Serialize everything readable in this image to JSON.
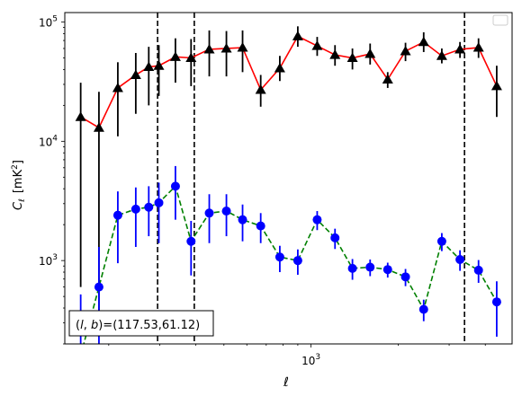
{
  "chart_data": {
    "type": "scatter",
    "xlabel": "ℓ",
    "ylabel_main": "C",
    "ylabel_sub": "ℓ",
    "ylabel_units": "[mK",
    "ylabel_units_sup": "2",
    "ylabel_units_close": "]",
    "xscale": "log",
    "yscale": "log",
    "xlim": [
      141,
      4950
    ],
    "ylim": [
      200,
      120000
    ],
    "x_tick_label": {
      "base": "10",
      "exp": "3",
      "value": 1000
    },
    "y_tick_labels": [
      {
        "base": "10",
        "exp": "3",
        "value": 1000
      },
      {
        "base": "10",
        "exp": "4",
        "value": 10000
      },
      {
        "base": "10",
        "exp": "5",
        "value": 100000
      }
    ],
    "legend": {
      "placement": "top-right",
      "empty": true
    },
    "annotation": "(l, b)=(117.53,61.12)",
    "annotation_parts": {
      "l": "l",
      "b": "b",
      "prefix": "(",
      "sep": ", ",
      "suffix": ")=(117.53,61.12)"
    },
    "vlines": [
      295,
      395,
      3390
    ],
    "series": [
      {
        "color": "#000000",
        "line_color": "#ff0000",
        "line_style": "solid",
        "marker": "triangle",
        "points": [
          {
            "x": 160,
            "y": 16000,
            "lo": 600,
            "hi": 31000
          },
          {
            "x": 185,
            "y": 13000,
            "lo": 280,
            "hi": 26000
          },
          {
            "x": 215,
            "y": 28000,
            "lo": 11000,
            "hi": 46000
          },
          {
            "x": 248,
            "y": 36000,
            "lo": 17000,
            "hi": 55000
          },
          {
            "x": 275,
            "y": 42000,
            "lo": 20000,
            "hi": 62000
          },
          {
            "x": 298,
            "y": 43000,
            "lo": 24000,
            "hi": 64000
          },
          {
            "x": 340,
            "y": 51000,
            "lo": 31000,
            "hi": 73000
          },
          {
            "x": 385,
            "y": 50000,
            "lo": 29000,
            "hi": 72000
          },
          {
            "x": 445,
            "y": 59000,
            "lo": 35000,
            "hi": 85000
          },
          {
            "x": 510,
            "y": 60000,
            "lo": 35000,
            "hi": 84000
          },
          {
            "x": 580,
            "y": 61000,
            "lo": 38000,
            "hi": 85000
          },
          {
            "x": 670,
            "y": 27000,
            "lo": 19500,
            "hi": 36000
          },
          {
            "x": 780,
            "y": 41000,
            "lo": 32000,
            "hi": 52000
          },
          {
            "x": 900,
            "y": 76000,
            "lo": 62000,
            "hi": 92000
          },
          {
            "x": 1050,
            "y": 63000,
            "lo": 52000,
            "hi": 75000
          },
          {
            "x": 1210,
            "y": 53000,
            "lo": 43000,
            "hi": 64000
          },
          {
            "x": 1390,
            "y": 50000,
            "lo": 40000,
            "hi": 60000
          },
          {
            "x": 1600,
            "y": 54000,
            "lo": 44000,
            "hi": 66000
          },
          {
            "x": 1840,
            "y": 33000,
            "lo": 28000,
            "hi": 38000
          },
          {
            "x": 2120,
            "y": 57000,
            "lo": 47000,
            "hi": 67000
          },
          {
            "x": 2450,
            "y": 68000,
            "lo": 56000,
            "hi": 82000
          },
          {
            "x": 2830,
            "y": 52000,
            "lo": 45000,
            "hi": 60000
          },
          {
            "x": 3270,
            "y": 59000,
            "lo": 50000,
            "hi": 68000
          },
          {
            "x": 3790,
            "y": 61000,
            "lo": 50000,
            "hi": 73000
          },
          {
            "x": 4380,
            "y": 29000,
            "lo": 16000,
            "hi": 43000
          }
        ]
      },
      {
        "color": "#0000ff",
        "line_color": "#008000",
        "line_style": "dashed",
        "marker": "circle",
        "points": [
          {
            "x": 160,
            "y": 160,
            "lo": 50,
            "hi": 520
          },
          {
            "x": 185,
            "y": 600,
            "lo": 150,
            "hi": 1300
          },
          {
            "x": 215,
            "y": 2400,
            "lo": 950,
            "hi": 3800
          },
          {
            "x": 248,
            "y": 2700,
            "lo": 1300,
            "hi": 4100
          },
          {
            "x": 275,
            "y": 2800,
            "lo": 1600,
            "hi": 4200
          },
          {
            "x": 298,
            "y": 3050,
            "lo": 1400,
            "hi": 4500
          },
          {
            "x": 340,
            "y": 4200,
            "lo": 2200,
            "hi": 6200
          },
          {
            "x": 385,
            "y": 1450,
            "lo": 750,
            "hi": 2150
          },
          {
            "x": 445,
            "y": 2500,
            "lo": 1400,
            "hi": 3600
          },
          {
            "x": 510,
            "y": 2600,
            "lo": 1600,
            "hi": 3600
          },
          {
            "x": 580,
            "y": 2200,
            "lo": 1450,
            "hi": 2950
          },
          {
            "x": 670,
            "y": 1950,
            "lo": 1400,
            "hi": 2500
          },
          {
            "x": 780,
            "y": 1070,
            "lo": 800,
            "hi": 1330
          },
          {
            "x": 900,
            "y": 1000,
            "lo": 760,
            "hi": 1240
          },
          {
            "x": 1050,
            "y": 2200,
            "lo": 1800,
            "hi": 2600
          },
          {
            "x": 1210,
            "y": 1550,
            "lo": 1250,
            "hi": 1850
          },
          {
            "x": 1390,
            "y": 860,
            "lo": 690,
            "hi": 1030
          },
          {
            "x": 1600,
            "y": 880,
            "lo": 740,
            "hi": 1020
          },
          {
            "x": 1840,
            "y": 840,
            "lo": 720,
            "hi": 960
          },
          {
            "x": 2120,
            "y": 730,
            "lo": 610,
            "hi": 850
          },
          {
            "x": 2450,
            "y": 390,
            "lo": 310,
            "hi": 470
          },
          {
            "x": 2830,
            "y": 1450,
            "lo": 1200,
            "hi": 1700
          },
          {
            "x": 3270,
            "y": 1020,
            "lo": 820,
            "hi": 1220
          },
          {
            "x": 3790,
            "y": 830,
            "lo": 650,
            "hi": 1010
          },
          {
            "x": 4380,
            "y": 450,
            "lo": 230,
            "hi": 670
          }
        ]
      }
    ]
  }
}
